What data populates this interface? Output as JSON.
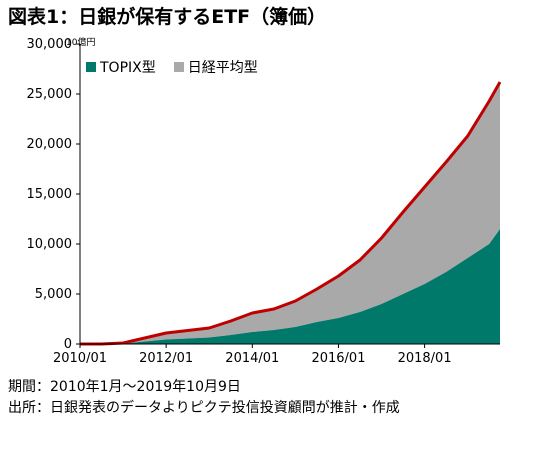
{
  "title": "図表1：日銀が保有するETF（簿価）",
  "unit": "10億円",
  "notes": {
    "period": "期間：2010年1月～2019年10月9日",
    "source": "出所：日銀発表のデータよりピクテ投信投資顧問が推計・作成"
  },
  "colors": {
    "topix": "#00786a",
    "nikkei": "#a9a9a9",
    "total_line": "#c00000"
  },
  "chart_data": {
    "type": "area",
    "stacked": true,
    "x": [
      "2010/01",
      "2010/07",
      "2011/01",
      "2011/07",
      "2012/01",
      "2012/07",
      "2013/01",
      "2013/07",
      "2014/01",
      "2014/07",
      "2015/01",
      "2015/07",
      "2016/01",
      "2016/07",
      "2017/01",
      "2017/07",
      "2018/01",
      "2018/07",
      "2019/01",
      "2019/07",
      "2019/10"
    ],
    "series": [
      {
        "name": "TOPIX型",
        "values": [
          0,
          0,
          50,
          250,
          450,
          550,
          650,
          900,
          1200,
          1400,
          1700,
          2200,
          2600,
          3200,
          4000,
          5000,
          6000,
          7200,
          8600,
          10000,
          11500
        ]
      },
      {
        "name": "日経平均型",
        "values": [
          0,
          0,
          50,
          350,
          650,
          800,
          950,
          1400,
          1900,
          2100,
          2600,
          3300,
          4200,
          5200,
          6600,
          8200,
          9700,
          11000,
          12200,
          14300,
          14700
        ]
      }
    ],
    "total_line": [
      0,
      0,
      100,
      600,
      1100,
      1350,
      1600,
      2300,
      3100,
      3500,
      4300,
      5500,
      6800,
      8400,
      10600,
      13200,
      15700,
      18200,
      20800,
      24300,
      26200
    ],
    "ylim": [
      0,
      30000
    ],
    "yticks": [
      0,
      5000,
      10000,
      15000,
      20000,
      25000,
      30000
    ],
    "ytick_labels": [
      "0",
      "5,000",
      "10,000",
      "15,000",
      "20,000",
      "25,000",
      "30,000"
    ],
    "xticks": [
      "2010/01",
      "2012/01",
      "2014/01",
      "2016/01",
      "2018/01"
    ],
    "legend": [
      "TOPIX型",
      "日経平均型"
    ],
    "legend_position": "top-left"
  }
}
